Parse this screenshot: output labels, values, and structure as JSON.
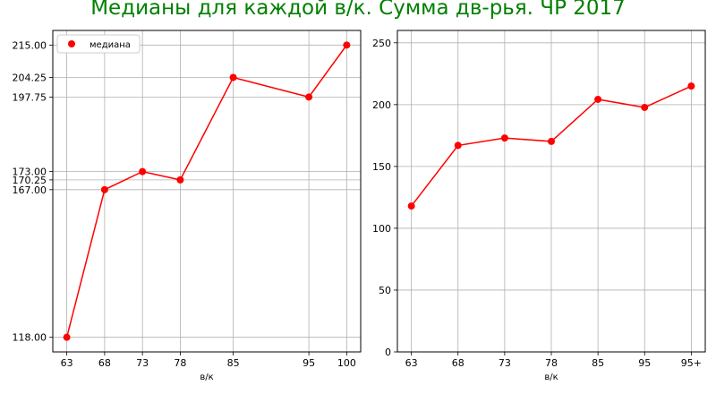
{
  "figure": {
    "title": "Медианы для каждой в/к. Сумма дв-рья. ЧР 2017",
    "title_color": "#008000"
  },
  "chart_data": [
    {
      "type": "line",
      "xlabel": "в/к",
      "ylabel": "",
      "x": [
        63,
        68,
        73,
        78,
        85,
        95,
        100
      ],
      "xticks": [
        "63",
        "68",
        "73",
        "78",
        "85",
        "95",
        "100"
      ],
      "yticks": [
        "118.00",
        "167.00",
        "170.25",
        "173.00",
        "197.75",
        "204.25",
        "215.00"
      ],
      "ytick_values": [
        118.0,
        167.0,
        170.25,
        173.0,
        197.75,
        204.25,
        215.0
      ],
      "xlim": [
        61.15,
        101.85
      ],
      "ylim": [
        113.15,
        219.85
      ],
      "grid": true,
      "legend": "top-left",
      "series": [
        {
          "name": "медиана",
          "color": "#ff0000",
          "marker": "circle",
          "values": [
            118.0,
            167.0,
            173.0,
            170.25,
            204.25,
            197.75,
            215.0
          ]
        }
      ]
    },
    {
      "type": "line",
      "xlabel": "в/к",
      "ylabel": "",
      "categories": [
        "63",
        "68",
        "73",
        "78",
        "85",
        "95",
        "95+"
      ],
      "yticks": [
        "0",
        "50",
        "100",
        "150",
        "200",
        "250"
      ],
      "ytick_values": [
        0,
        50,
        100,
        150,
        200,
        250
      ],
      "ylim": [
        0,
        260
      ],
      "grid": true,
      "series": [
        {
          "color": "#ff0000",
          "marker": "circle",
          "values": [
            118.0,
            167.0,
            173.0,
            170.25,
            204.25,
            197.75,
            215.0
          ]
        }
      ]
    }
  ]
}
